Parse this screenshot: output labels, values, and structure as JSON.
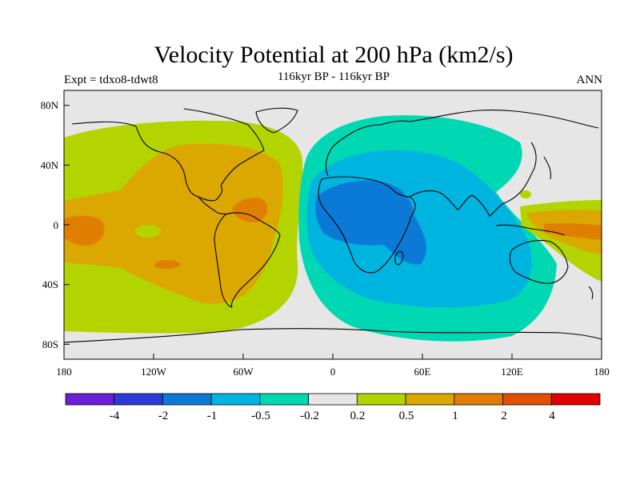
{
  "title": "Velocity Potential at 200 hPa (km2/s)",
  "subtitle": "116kyr BP - 116kyr BP",
  "left_label": "Expt = tdxo8-tdwt8",
  "right_label": "ANN",
  "map": {
    "projection": "cylindrical equidistant",
    "lon_range": [
      -180,
      180
    ],
    "lat_range": [
      -90,
      90
    ],
    "x_ticks": [
      "180",
      "120W",
      "60W",
      "0",
      "60E",
      "120E",
      "180"
    ],
    "y_ticks": [
      "80N",
      "40N",
      "0",
      "40S",
      "80S"
    ],
    "missing_color": "#e6e6e6"
  },
  "colorbar": {
    "colors": [
      "#6a1fd6",
      "#2a3bd8",
      "#0a7ad6",
      "#00b4e0",
      "#00d8b4",
      "#e6e6e6",
      "#b4d400",
      "#daa800",
      "#e07e00",
      "#e05000",
      "#e00000"
    ],
    "labels": [
      "-4",
      "-2",
      "-1",
      "-0.5",
      "-0.2",
      "0.2",
      "0.5",
      "1",
      "2",
      "4"
    ]
  }
}
